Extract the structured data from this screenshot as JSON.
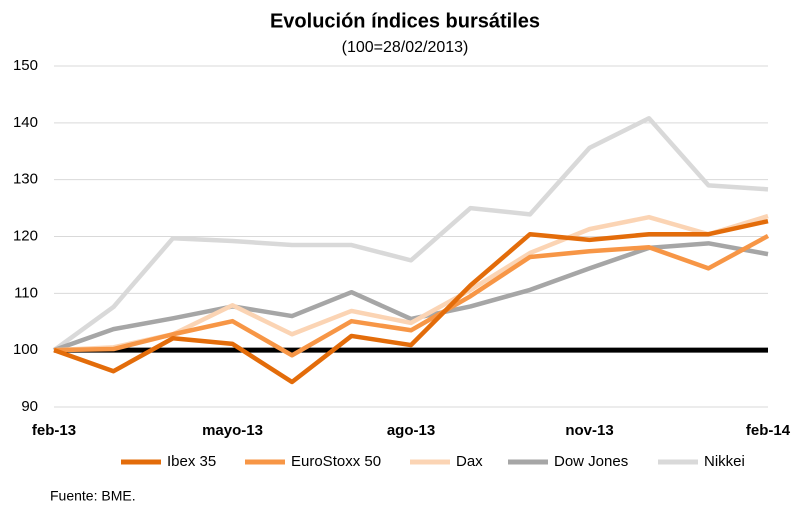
{
  "chart_data": {
    "type": "line",
    "title": "Evolución índices bursátiles",
    "subtitle": "(100=28/02/2013)",
    "source": "Fuente: BME.",
    "categories": [
      "feb-13",
      null,
      null,
      "mayo-13",
      null,
      null,
      "ago-13",
      null,
      null,
      "nov-13",
      null,
      null,
      "feb-14"
    ],
    "series": [
      {
        "name": "Ibex 35",
        "color": "#e36c0a",
        "values": [
          100,
          96.3,
          102.1,
          101.1,
          94.4,
          102.5,
          100.9,
          111.4,
          120.4,
          119.4,
          120.4,
          120.4,
          122.7
        ]
      },
      {
        "name": "EuroStoxx 50",
        "color": "#f79646",
        "values": [
          100,
          100.2,
          102.8,
          105.1,
          99.1,
          105.1,
          103.5,
          109.5,
          116.4,
          117.4,
          118.1,
          114.4,
          120.1
        ]
      },
      {
        "name": "Dax",
        "color": "#fbd4b4",
        "values": [
          100,
          100.5,
          102.8,
          107.9,
          102.8,
          106.9,
          104.8,
          110.6,
          117.1,
          121.3,
          123.4,
          120.4,
          123.6
        ]
      },
      {
        "name": "Dow Jones",
        "color": "#a6a6a6",
        "values": [
          100,
          103.7,
          105.6,
          107.7,
          106,
          110.2,
          105.5,
          107.7,
          110.6,
          114.4,
          118,
          118.8,
          116.9
        ]
      },
      {
        "name": "Nikkei",
        "color": "#d9d9d9",
        "values": [
          100,
          107.6,
          119.7,
          119.2,
          118.5,
          118.5,
          115.8,
          125,
          123.9,
          135.6,
          140.8,
          129,
          128.3
        ]
      }
    ],
    "reference_line": 100,
    "ylim": [
      90,
      150
    ],
    "yticks": [
      90,
      100,
      110,
      120,
      130,
      140,
      150
    ],
    "grid": true,
    "legend": "bottom"
  }
}
